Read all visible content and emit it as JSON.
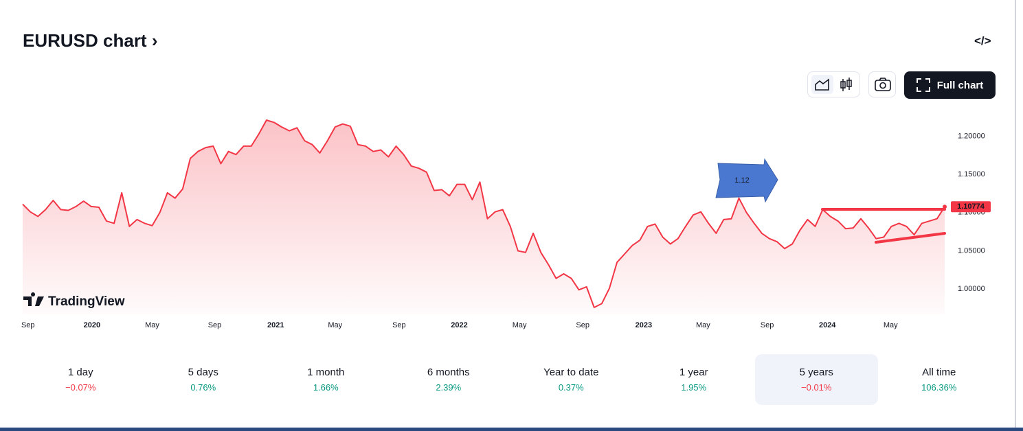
{
  "header": {
    "title": "EURUSD chart"
  },
  "toolbar": {
    "full_chart": "Full chart"
  },
  "chart_data": {
    "type": "line",
    "color": "#f23645",
    "values": [
      1.111,
      1.101,
      1.095,
      1.104,
      1.116,
      1.104,
      1.103,
      1.108,
      1.115,
      1.108,
      1.107,
      1.089,
      1.086,
      1.126,
      1.082,
      1.091,
      1.086,
      1.083,
      1.1,
      1.126,
      1.119,
      1.131,
      1.171,
      1.18,
      1.185,
      1.187,
      1.164,
      1.18,
      1.176,
      1.187,
      1.187,
      1.203,
      1.221,
      1.218,
      1.212,
      1.207,
      1.211,
      1.194,
      1.189,
      1.178,
      1.194,
      1.212,
      1.216,
      1.213,
      1.189,
      1.187,
      1.18,
      1.182,
      1.173,
      1.187,
      1.176,
      1.161,
      1.158,
      1.153,
      1.129,
      1.13,
      1.122,
      1.137,
      1.137,
      1.117,
      1.14,
      1.092,
      1.101,
      1.104,
      1.082,
      1.05,
      1.048,
      1.073,
      1.048,
      1.032,
      1.014,
      1.02,
      1.014,
      0.999,
      1.003,
      0.976,
      0.981,
      1.001,
      1.035,
      1.046,
      1.057,
      1.064,
      1.082,
      1.085,
      1.068,
      1.059,
      1.066,
      1.082,
      1.097,
      1.101,
      1.086,
      1.073,
      1.091,
      1.092,
      1.119,
      1.1,
      1.086,
      1.073,
      1.066,
      1.062,
      1.053,
      1.059,
      1.077,
      1.091,
      1.082,
      1.104,
      1.095,
      1.089,
      1.079,
      1.08,
      1.092,
      1.08,
      1.066,
      1.068,
      1.082,
      1.086,
      1.082,
      1.071,
      1.086,
      1.089,
      1.092,
      1.10774
    ],
    "xlim": [
      0,
      121
    ],
    "xticks": [
      {
        "value": 0.7,
        "label": "Sep"
      },
      {
        "value": 9.1,
        "label": "2020"
      },
      {
        "value": 17.0,
        "label": "May"
      },
      {
        "value": 25.2,
        "label": "Sep"
      },
      {
        "value": 33.2,
        "label": "2021"
      },
      {
        "value": 41.0,
        "label": "May"
      },
      {
        "value": 49.4,
        "label": "Sep"
      },
      {
        "value": 57.3,
        "label": "2022"
      },
      {
        "value": 65.2,
        "label": "May"
      },
      {
        "value": 73.5,
        "label": "Sep"
      },
      {
        "value": 81.5,
        "label": "2023"
      },
      {
        "value": 89.3,
        "label": "May"
      },
      {
        "value": 97.7,
        "label": "Sep"
      },
      {
        "value": 105.6,
        "label": "2024"
      },
      {
        "value": 113.9,
        "label": "May"
      }
    ],
    "ylim": [
      0.967,
      1.23
    ],
    "yticks": [
      {
        "value": 1.0,
        "label": "1.00000"
      },
      {
        "value": 1.05,
        "label": "1.05000"
      },
      {
        "value": 1.1,
        "label": "1.10000"
      },
      {
        "value": 1.15,
        "label": "1.15000"
      },
      {
        "value": 1.2,
        "label": "1.20000"
      }
    ],
    "annotation": "1.12",
    "watermark": "TradingView"
  },
  "periods": [
    {
      "label": "1 day",
      "change": "−0.07%"
    },
    {
      "label": "5 days",
      "change": "0.76%"
    },
    {
      "label": "1 month",
      "change": "1.66%"
    },
    {
      "label": "6 months",
      "change": "2.39%"
    },
    {
      "label": "Year to date",
      "change": "0.37%"
    },
    {
      "label": "1 year",
      "change": "1.95%"
    },
    {
      "label": "5 years",
      "change": "−0.01%"
    },
    {
      "label": "All time",
      "change": "106.36%"
    }
  ]
}
